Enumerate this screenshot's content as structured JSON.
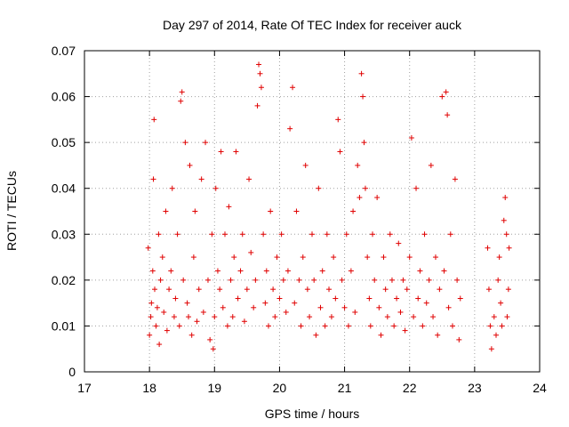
{
  "chart_data": {
    "type": "scatter",
    "title": "Day 297 of 2014, Rate Of TEC Index for receiver auck",
    "xlabel": "GPS time / hours",
    "ylabel": "ROTI / TECUs",
    "xlim": [
      17,
      24
    ],
    "ylim": [
      0,
      0.07
    ],
    "x_ticks": [
      "17",
      "18",
      "19",
      "20",
      "21",
      "22",
      "23",
      "24"
    ],
    "y_ticks": [
      "0",
      "0.01",
      "0.02",
      "0.03",
      "0.04",
      "0.05",
      "0.06",
      "0.07"
    ],
    "grid": true,
    "marker": "plus",
    "series_color": "#e00000",
    "series": [
      {
        "name": "ROTI",
        "points": [
          [
            17.98,
            0.027
          ],
          [
            18.0,
            0.008
          ],
          [
            18.02,
            0.012
          ],
          [
            18.03,
            0.015
          ],
          [
            18.05,
            0.022
          ],
          [
            18.06,
            0.042
          ],
          [
            18.07,
            0.055
          ],
          [
            18.08,
            0.018
          ],
          [
            18.1,
            0.01
          ],
          [
            18.12,
            0.014
          ],
          [
            18.14,
            0.03
          ],
          [
            18.15,
            0.006
          ],
          [
            18.17,
            0.02
          ],
          [
            18.2,
            0.025
          ],
          [
            18.22,
            0.013
          ],
          [
            18.25,
            0.035
          ],
          [
            18.27,
            0.009
          ],
          [
            18.3,
            0.018
          ],
          [
            18.33,
            0.022
          ],
          [
            18.35,
            0.04
          ],
          [
            18.38,
            0.012
          ],
          [
            18.4,
            0.016
          ],
          [
            18.43,
            0.03
          ],
          [
            18.46,
            0.01
          ],
          [
            18.48,
            0.059
          ],
          [
            18.5,
            0.061
          ],
          [
            18.52,
            0.02
          ],
          [
            18.55,
            0.05
          ],
          [
            18.58,
            0.015
          ],
          [
            18.6,
            0.012
          ],
          [
            18.62,
            0.045
          ],
          [
            18.65,
            0.008
          ],
          [
            18.68,
            0.025
          ],
          [
            18.7,
            0.035
          ],
          [
            18.73,
            0.011
          ],
          [
            18.76,
            0.018
          ],
          [
            18.8,
            0.042
          ],
          [
            18.83,
            0.013
          ],
          [
            18.86,
            0.05
          ],
          [
            18.9,
            0.02
          ],
          [
            18.93,
            0.007
          ],
          [
            18.96,
            0.03
          ],
          [
            18.98,
            0.005
          ],
          [
            19.0,
            0.012
          ],
          [
            19.02,
            0.04
          ],
          [
            19.05,
            0.022
          ],
          [
            19.08,
            0.018
          ],
          [
            19.1,
            0.048
          ],
          [
            19.13,
            0.014
          ],
          [
            19.16,
            0.03
          ],
          [
            19.2,
            0.01
          ],
          [
            19.22,
            0.036
          ],
          [
            19.25,
            0.02
          ],
          [
            19.28,
            0.012
          ],
          [
            19.3,
            0.025
          ],
          [
            19.33,
            0.048
          ],
          [
            19.36,
            0.016
          ],
          [
            19.4,
            0.022
          ],
          [
            19.43,
            0.03
          ],
          [
            19.46,
            0.011
          ],
          [
            19.5,
            0.018
          ],
          [
            19.53,
            0.042
          ],
          [
            19.56,
            0.026
          ],
          [
            19.6,
            0.014
          ],
          [
            19.63,
            0.02
          ],
          [
            19.66,
            0.058
          ],
          [
            19.68,
            0.067
          ],
          [
            19.7,
            0.065
          ],
          [
            19.72,
            0.062
          ],
          [
            19.75,
            0.03
          ],
          [
            19.78,
            0.015
          ],
          [
            19.8,
            0.022
          ],
          [
            19.83,
            0.01
          ],
          [
            19.86,
            0.035
          ],
          [
            19.9,
            0.018
          ],
          [
            19.93,
            0.012
          ],
          [
            19.96,
            0.025
          ],
          [
            20.0,
            0.016
          ],
          [
            20.03,
            0.03
          ],
          [
            20.06,
            0.02
          ],
          [
            20.1,
            0.013
          ],
          [
            20.13,
            0.022
          ],
          [
            20.16,
            0.053
          ],
          [
            20.2,
            0.062
          ],
          [
            20.23,
            0.015
          ],
          [
            20.26,
            0.035
          ],
          [
            20.3,
            0.02
          ],
          [
            20.33,
            0.01
          ],
          [
            20.36,
            0.025
          ],
          [
            20.4,
            0.045
          ],
          [
            20.43,
            0.018
          ],
          [
            20.46,
            0.012
          ],
          [
            20.5,
            0.03
          ],
          [
            20.53,
            0.02
          ],
          [
            20.56,
            0.008
          ],
          [
            20.6,
            0.04
          ],
          [
            20.63,
            0.014
          ],
          [
            20.66,
            0.022
          ],
          [
            20.7,
            0.01
          ],
          [
            20.73,
            0.03
          ],
          [
            20.76,
            0.018
          ],
          [
            20.8,
            0.012
          ],
          [
            20.83,
            0.025
          ],
          [
            20.86,
            0.016
          ],
          [
            20.9,
            0.055
          ],
          [
            20.93,
            0.048
          ],
          [
            20.96,
            0.02
          ],
          [
            21.0,
            0.014
          ],
          [
            21.03,
            0.03
          ],
          [
            21.06,
            0.01
          ],
          [
            21.1,
            0.022
          ],
          [
            21.13,
            0.035
          ],
          [
            21.16,
            0.013
          ],
          [
            21.2,
            0.045
          ],
          [
            21.23,
            0.038
          ],
          [
            21.26,
            0.065
          ],
          [
            21.28,
            0.06
          ],
          [
            21.3,
            0.05
          ],
          [
            21.32,
            0.04
          ],
          [
            21.35,
            0.025
          ],
          [
            21.38,
            0.016
          ],
          [
            21.4,
            0.01
          ],
          [
            21.43,
            0.03
          ],
          [
            21.46,
            0.02
          ],
          [
            21.5,
            0.038
          ],
          [
            21.53,
            0.014
          ],
          [
            21.56,
            0.008
          ],
          [
            21.6,
            0.025
          ],
          [
            21.63,
            0.018
          ],
          [
            21.66,
            0.012
          ],
          [
            21.7,
            0.03
          ],
          [
            21.73,
            0.02
          ],
          [
            21.76,
            0.01
          ],
          [
            21.8,
            0.016
          ],
          [
            21.83,
            0.028
          ],
          [
            21.86,
            0.013
          ],
          [
            21.9,
            0.02
          ],
          [
            21.93,
            0.009
          ],
          [
            21.96,
            0.018
          ],
          [
            22.0,
            0.025
          ],
          [
            22.03,
            0.051
          ],
          [
            22.06,
            0.012
          ],
          [
            22.1,
            0.04
          ],
          [
            22.13,
            0.016
          ],
          [
            22.16,
            0.022
          ],
          [
            22.2,
            0.01
          ],
          [
            22.23,
            0.03
          ],
          [
            22.26,
            0.015
          ],
          [
            22.3,
            0.02
          ],
          [
            22.33,
            0.045
          ],
          [
            22.36,
            0.012
          ],
          [
            22.4,
            0.025
          ],
          [
            22.43,
            0.008
          ],
          [
            22.46,
            0.018
          ],
          [
            22.5,
            0.06
          ],
          [
            22.53,
            0.022
          ],
          [
            22.56,
            0.061
          ],
          [
            22.58,
            0.056
          ],
          [
            22.6,
            0.014
          ],
          [
            22.63,
            0.03
          ],
          [
            22.66,
            0.01
          ],
          [
            22.7,
            0.042
          ],
          [
            22.73,
            0.02
          ],
          [
            22.76,
            0.007
          ],
          [
            22.78,
            0.016
          ],
          [
            23.2,
            0.027
          ],
          [
            23.22,
            0.018
          ],
          [
            23.24,
            0.01
          ],
          [
            23.26,
            0.005
          ],
          [
            23.3,
            0.012
          ],
          [
            23.33,
            0.008
          ],
          [
            23.36,
            0.02
          ],
          [
            23.38,
            0.025
          ],
          [
            23.4,
            0.015
          ],
          [
            23.42,
            0.01
          ],
          [
            23.45,
            0.033
          ],
          [
            23.47,
            0.038
          ],
          [
            23.49,
            0.03
          ],
          [
            23.5,
            0.012
          ],
          [
            23.52,
            0.018
          ],
          [
            23.53,
            0.027
          ]
        ]
      }
    ]
  }
}
